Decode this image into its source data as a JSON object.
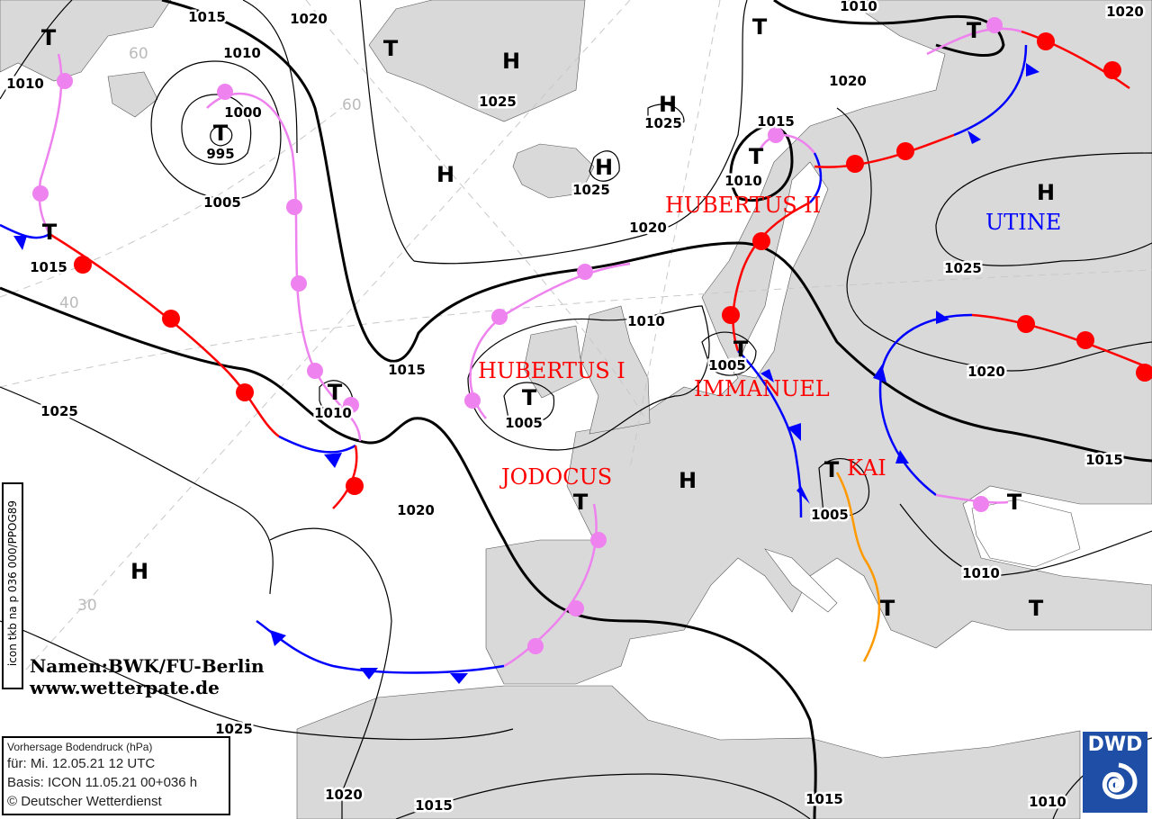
{
  "map_title": "Vorhersage Bodendruck (hPa)",
  "valid_for": "für:  Mi. 12.05.21  12 UTC",
  "basis": "Basis: ICON  11.05.21 00+036 h",
  "copyright": "© Deutscher Wetterdienst",
  "model_tag": "icon tkb na p 036 000/PPOG89",
  "credit_line1": "Namen:BWK/FU-Berlin",
  "credit_line2": "www.wetterpate.de",
  "logo_text": "DWD",
  "latitude_labels": [
    "60",
    "60",
    "40",
    "30"
  ],
  "pressure_centers": [
    "T",
    "T",
    "T",
    "H",
    "H",
    "H",
    "H",
    "T",
    "T",
    "T",
    "T",
    "T",
    "H",
    "T",
    "T",
    "T",
    "H",
    "T",
    "T",
    "H",
    "T",
    "T",
    "H"
  ],
  "pressure_values": [
    "1000",
    "995",
    "1005",
    "1015",
    "1010",
    "1010",
    "1015",
    "1020",
    "1025",
    "1025",
    "1020",
    "1015",
    "1010",
    "1005",
    "1020",
    "1005",
    "1005",
    "1020",
    "1010",
    "1025",
    "1020",
    "1015",
    "1010",
    "1025",
    "1020",
    "1015",
    "1015",
    "1010",
    "1025"
  ],
  "system_names": {
    "hubertus_1": "HUBERTUS  I",
    "hubertus_2": "HUBERTUS  II",
    "immanuel": "IMMANUEL",
    "jodocus": "JODOCUS",
    "kai": "KAI",
    "utine": "UTINE"
  },
  "colors": {
    "land": "#d9d9d9",
    "cold_front": "#0000ff",
    "warm_front": "#ff0000",
    "occlusion": "#ee82ee",
    "trough": "#ff9900",
    "low_high_names": "#ff0000",
    "utine": "#0000ff",
    "dwd_logo": "#1e4ea6"
  }
}
